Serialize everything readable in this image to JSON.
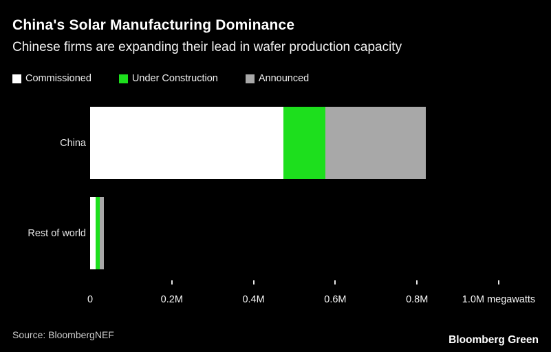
{
  "chart_data": {
    "type": "bar",
    "orientation": "horizontal",
    "stacked": true,
    "title": "China's Solar Manufacturing Dominance",
    "subtitle": "Chinese firms are expanding their lead in wafer production capacity",
    "categories": [
      "China",
      "Rest of world"
    ],
    "series": [
      {
        "name": "Commissioned",
        "color": "#ffffff",
        "values": [
          473000,
          13000
        ]
      },
      {
        "name": "Under Construction",
        "color": "#1ddf1d",
        "values": [
          102000,
          10000
        ]
      },
      {
        "name": "Announced",
        "color": "#a8a8a8",
        "values": [
          246000,
          10000
        ]
      }
    ],
    "unit": "megawatts",
    "xlim": [
      0,
      1100000
    ],
    "xticks": [
      0,
      200000,
      400000,
      600000,
      800000,
      1000000
    ],
    "xtick_labels": [
      "0",
      "0.2M",
      "0.4M",
      "0.6M",
      "0.8M",
      "1.0M megawatts"
    ],
    "grid": false,
    "legend_position": "top"
  },
  "footer": {
    "source": "Source: BloombergNEF",
    "brand": "Bloomberg Green"
  },
  "colors": {
    "background": "#000000",
    "title_text": "#ffffff",
    "axis_text": "#f5f5f5",
    "source_text": "#cccccc",
    "commissioned": "#ffffff",
    "under_construction": "#1ddf1d",
    "announced": "#a8a8a8"
  }
}
